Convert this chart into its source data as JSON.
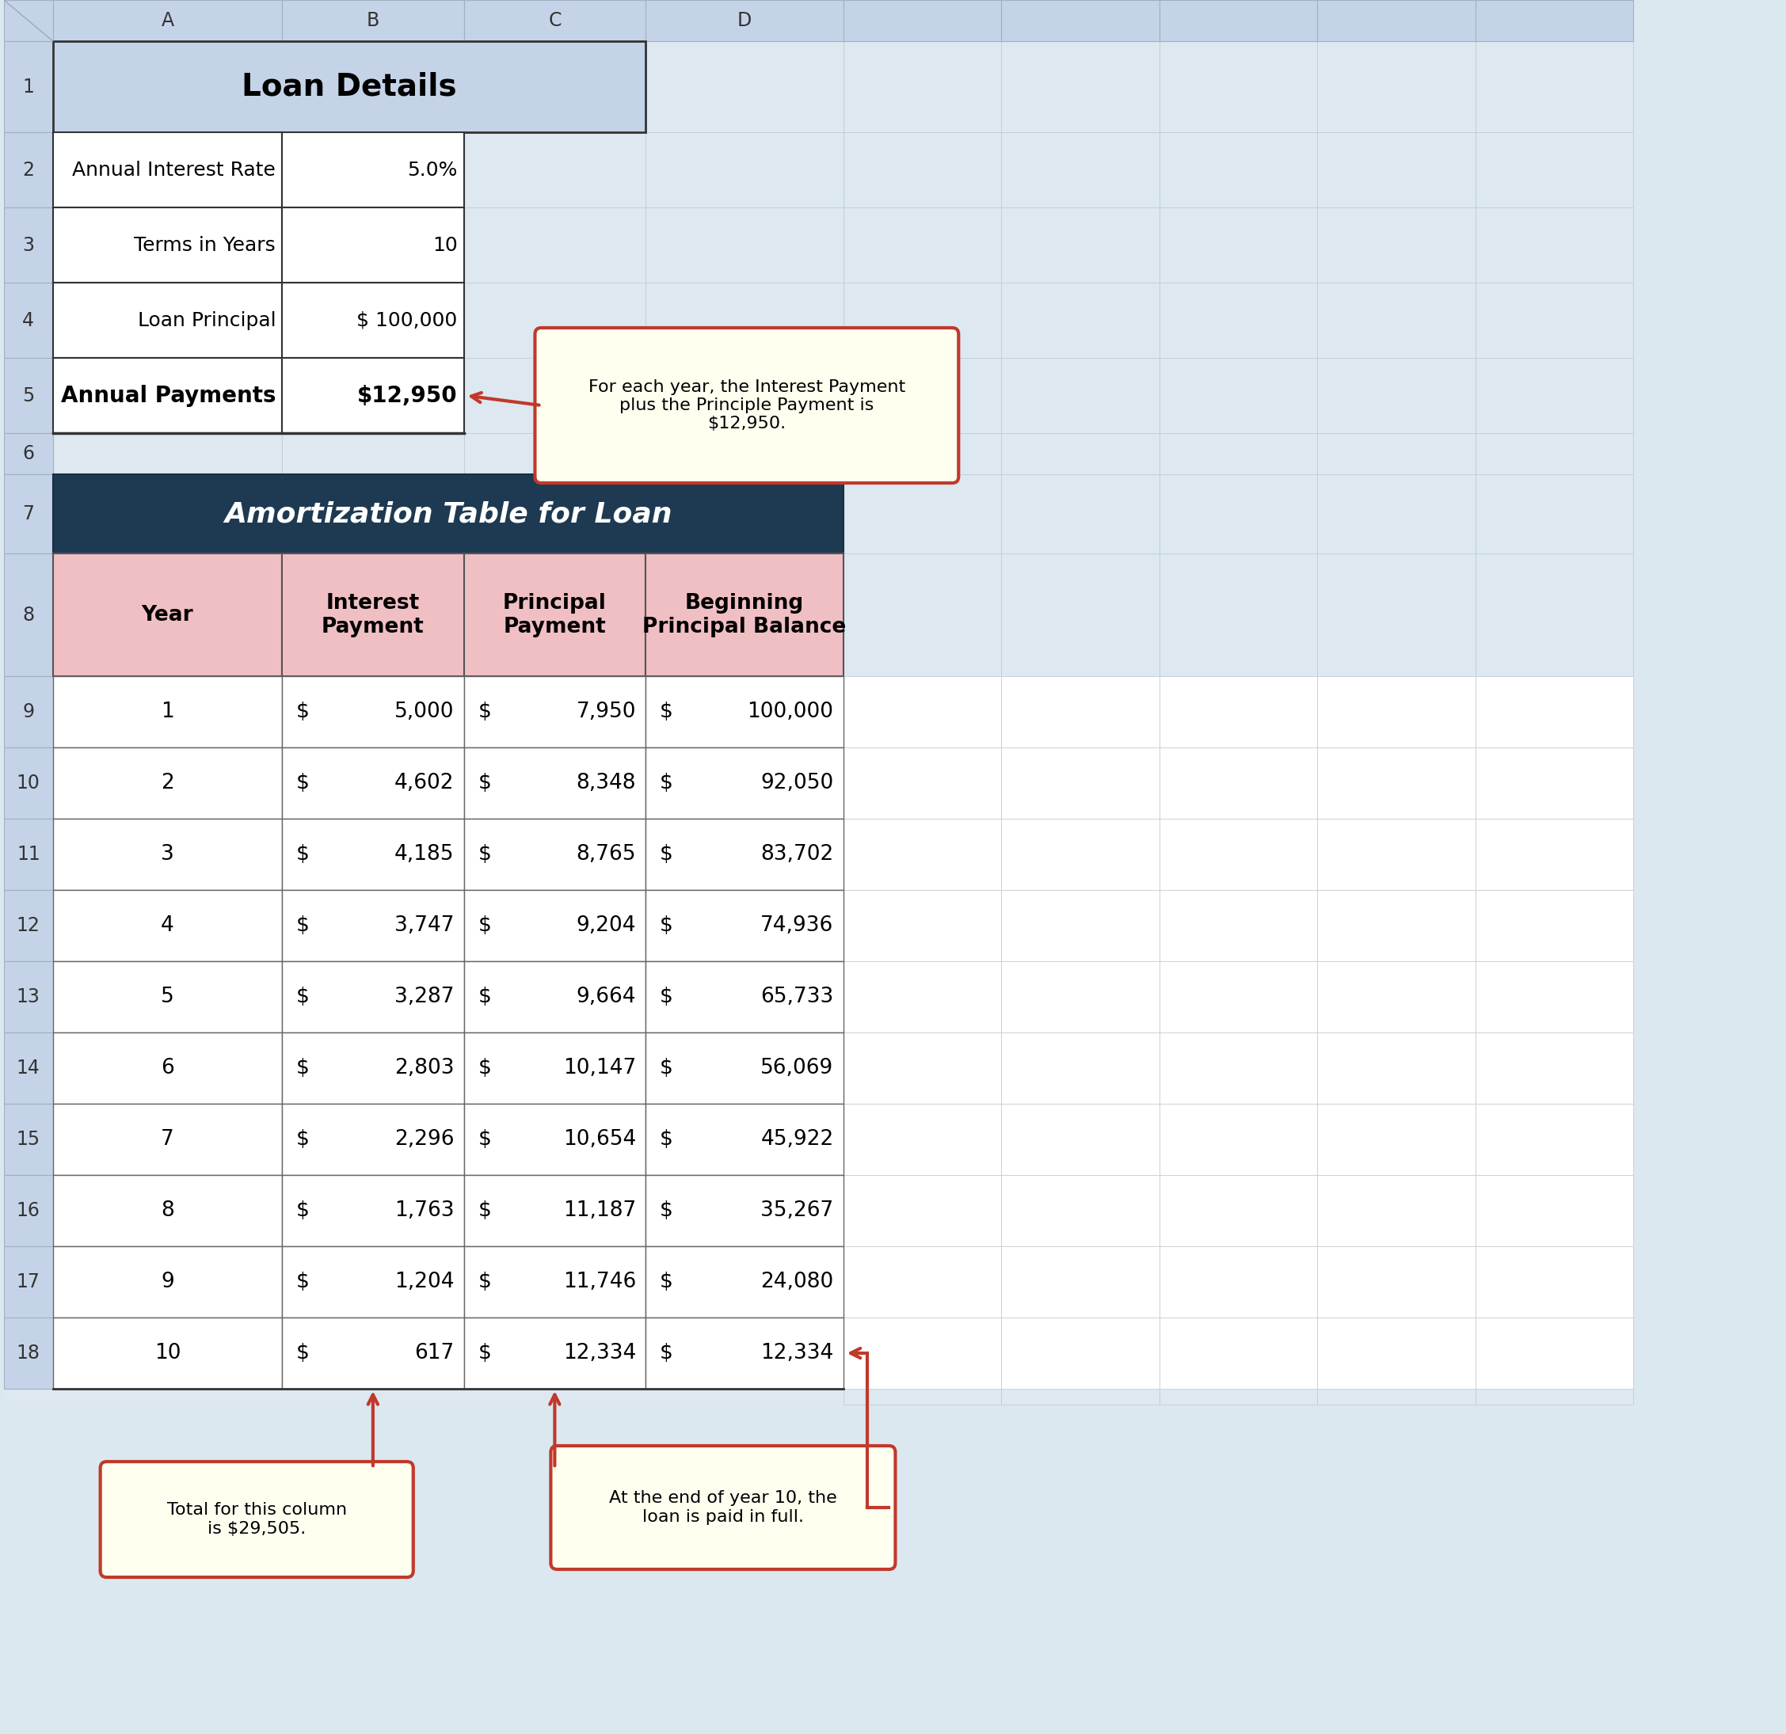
{
  "loan_details_title": "Loan Details",
  "amort_title": "Amortization Table for Loan",
  "headers": [
    "Year",
    "Interest\nPayment",
    "Principal\nPayment",
    "Beginning\nPrincipal Balance"
  ],
  "table_data": [
    [
      "1",
      "$ 5,000",
      "$ 7,950",
      "$ 100,000"
    ],
    [
      "2",
      "$ 4,602",
      "$ 8,348",
      "$ 92,050"
    ],
    [
      "3",
      "$ 4,185",
      "$ 8,765",
      "$ 83,702"
    ],
    [
      "4",
      "$ 3,747",
      "$ 9,204",
      "$ 74,936"
    ],
    [
      "5",
      "$ 3,287",
      "$ 9,664",
      "$ 65,733"
    ],
    [
      "6",
      "$ 2,803",
      "$ 10,147",
      "$ 56,069"
    ],
    [
      "7",
      "$ 2,296",
      "$ 10,654",
      "$ 45,922"
    ],
    [
      "8",
      "$ 1,763",
      "$ 11,187",
      "$ 35,267"
    ],
    [
      "9",
      "$ 1,204",
      "$ 11,746",
      "$ 24,080"
    ],
    [
      "10",
      "$ 617",
      "$ 12,334",
      "$ 12,334"
    ]
  ],
  "detail_labels": [
    "Annual Interest Rate",
    "Terms in Years",
    "Loan Principal",
    "Annual Payments"
  ],
  "detail_values": [
    "5.0%",
    "10",
    "$ 100,000",
    "$12,950"
  ],
  "detail_bold": [
    false,
    false,
    false,
    true
  ],
  "callout1_text": "For each year, the Interest Payment\nplus the Principle Payment is\n$12,950.",
  "callout2_text": "Total for this column\nis $29,505.",
  "callout3_text": "At the end of year 10, the\nloan is paid in full.",
  "bg_color": "#dce8f0",
  "spreadsheet_bg": "#dde8f0",
  "header_col_bg": "#c8d8e8",
  "col_header_bg": "#c5d3e8",
  "loan_header_bg": "#c5d3e8",
  "dark_navy": "#1e3a52",
  "pink_header": "#f0bfc4",
  "white": "#ffffff",
  "callout_bg": "#fffff0",
  "callout_border": "#c0392b",
  "arrow_color": "#c0392b",
  "col_letters": [
    "A",
    "B",
    "C",
    "D"
  ],
  "row_nums_top": [
    "1",
    "2",
    "3",
    "4",
    "5",
    "6",
    "7",
    "8",
    "9",
    "10",
    "11",
    "12",
    "13",
    "14",
    "15",
    "16",
    "17",
    "18"
  ]
}
